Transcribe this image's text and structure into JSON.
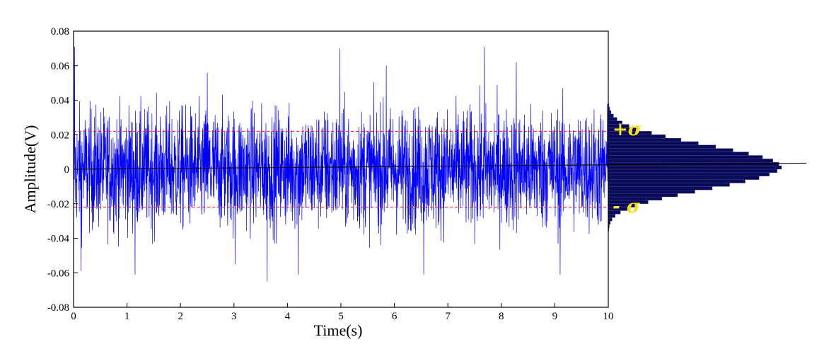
{
  "chart_data": {
    "type": "line",
    "xlabel": "Time(s)",
    "ylabel": "Amplitude(V)",
    "xlim": [
      0,
      10
    ],
    "ylim": [
      -0.08,
      0.08
    ],
    "x_ticks": [
      "0",
      "1",
      "2",
      "3",
      "4",
      "5",
      "6",
      "7",
      "8",
      "9",
      "10"
    ],
    "y_ticks": [
      "0.08",
      "0.06",
      "0.04",
      "0.02",
      "0",
      "-0.02",
      "-0.04",
      "-0.06",
      "-0.08"
    ],
    "series": [
      {
        "color": "#0000ff",
        "signal": "zero-mean random noise",
        "peaks": [
          {
            "x": 0.02,
            "y": 0.071
          },
          {
            "x": 0.14,
            "y": -0.059
          },
          {
            "x": 1.15,
            "y": -0.061
          },
          {
            "x": 2.5,
            "y": 0.056
          },
          {
            "x": 3.02,
            "y": -0.055
          },
          {
            "x": 3.62,
            "y": -0.065
          },
          {
            "x": 4.2,
            "y": -0.061
          },
          {
            "x": 4.98,
            "y": 0.07
          },
          {
            "x": 5.85,
            "y": 0.06
          },
          {
            "x": 6.55,
            "y": -0.061
          },
          {
            "x": 7.68,
            "y": 0.071
          },
          {
            "x": 8.28,
            "y": 0.062
          },
          {
            "x": 9.1,
            "y": -0.061
          }
        ]
      }
    ],
    "sigma": 0.022,
    "sigma_line_color": "#ff0000",
    "sigma_labels": {
      "plus": "+σ",
      "minus": "- σ"
    },
    "sigma_label_color": "#f2e21a",
    "zero_line_color": "#000000",
    "histogram": {
      "orientation": "horizontal",
      "fill_color": "#0a0a5a",
      "bin_width": 0.002,
      "relative_frequency": [
        0.003,
        0.006,
        0.012,
        0.022,
        0.04,
        0.07,
        0.11,
        0.16,
        0.23,
        0.31,
        0.4,
        0.5,
        0.6,
        0.7,
        0.79,
        0.87,
        0.93,
        0.975,
        1.0,
        0.985,
        0.95,
        0.89,
        0.81,
        0.72,
        0.62,
        0.52,
        0.42,
        0.33,
        0.25,
        0.18,
        0.12,
        0.08,
        0.05,
        0.03,
        0.016,
        0.008,
        0.004
      ]
    },
    "grid": false
  }
}
